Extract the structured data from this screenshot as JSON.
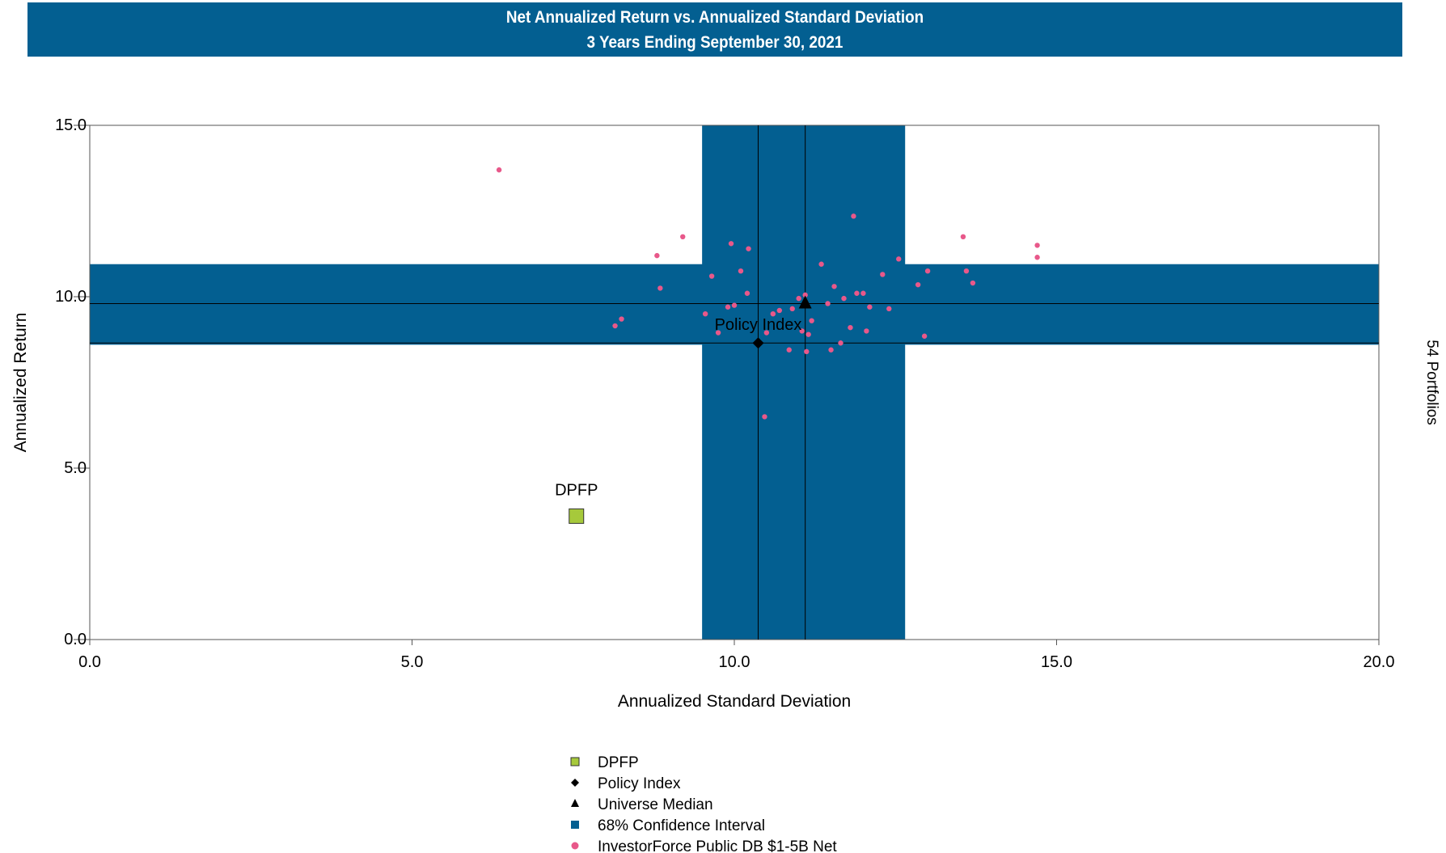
{
  "header": {
    "title": "Net Annualized Return vs. Annualized Standard Deviation",
    "subtitle": "3 Years Ending September 30, 2021"
  },
  "chart_data": {
    "type": "scatter",
    "title": "Net Annualized Return vs. Annualized Standard Deviation",
    "subtitle": "3 Years Ending September 30, 2021",
    "xlabel": "Annualized Standard Deviation",
    "ylabel": "Annualized Return",
    "right_label": "54 Portfolios",
    "xlim": [
      0,
      20
    ],
    "ylim": [
      0,
      15
    ],
    "x_ticks": [
      "0.0",
      "5.0",
      "10.0",
      "15.0",
      "20.0"
    ],
    "y_ticks": [
      "0.0",
      "5.0",
      "10.0",
      "15.0"
    ],
    "colors": {
      "confidence": "#035f91",
      "dpfp": "#a6c93b",
      "universe": "#e8588a",
      "marker": "#000000"
    },
    "confidence_interval": {
      "label": "68% Confidence Interval",
      "x_range": [
        9.5,
        12.65
      ],
      "y_range": [
        8.6,
        10.95
      ]
    },
    "policy_index": {
      "label": "Policy Index",
      "x": 10.37,
      "y": 8.65
    },
    "universe_median": {
      "label": "Universe Median",
      "x": 11.1,
      "y": 9.8
    },
    "dpfp": {
      "label": "DPFP",
      "x": 7.55,
      "y": 3.6
    },
    "universe": {
      "label": "InvestorForce Public DB $1-5B Net",
      "points": [
        [
          6.35,
          13.7
        ],
        [
          8.8,
          11.2
        ],
        [
          9.2,
          11.75
        ],
        [
          8.85,
          10.25
        ],
        [
          8.15,
          9.15
        ],
        [
          8.25,
          9.35
        ],
        [
          9.55,
          9.5
        ],
        [
          9.65,
          10.6
        ],
        [
          9.75,
          8.95
        ],
        [
          9.9,
          9.7
        ],
        [
          9.95,
          11.55
        ],
        [
          10.0,
          9.75
        ],
        [
          10.1,
          10.75
        ],
        [
          10.2,
          10.1
        ],
        [
          10.22,
          11.4
        ],
        [
          10.5,
          8.95
        ],
        [
          10.6,
          9.5
        ],
        [
          10.7,
          9.6
        ],
        [
          10.85,
          8.45
        ],
        [
          10.9,
          9.65
        ],
        [
          11.0,
          9.95
        ],
        [
          11.05,
          9.0
        ],
        [
          11.1,
          10.05
        ],
        [
          11.15,
          8.9
        ],
        [
          11.12,
          8.4
        ],
        [
          11.2,
          9.3
        ],
        [
          11.35,
          10.95
        ],
        [
          11.45,
          9.8
        ],
        [
          11.55,
          10.3
        ],
        [
          11.5,
          8.45
        ],
        [
          11.65,
          8.65
        ],
        [
          11.7,
          9.95
        ],
        [
          11.8,
          9.1
        ],
        [
          11.85,
          12.35
        ],
        [
          11.9,
          10.1
        ],
        [
          12.0,
          10.1
        ],
        [
          12.05,
          9.0
        ],
        [
          12.1,
          9.7
        ],
        [
          12.3,
          10.65
        ],
        [
          12.4,
          9.65
        ],
        [
          12.55,
          11.1
        ],
        [
          12.85,
          10.35
        ],
        [
          12.95,
          8.85
        ],
        [
          13.0,
          10.75
        ],
        [
          13.55,
          11.75
        ],
        [
          13.6,
          10.75
        ],
        [
          13.7,
          10.4
        ],
        [
          14.7,
          11.5
        ],
        [
          14.7,
          11.15
        ],
        [
          10.47,
          6.5
        ]
      ]
    },
    "legend": [
      "DPFP",
      "Policy Index",
      "Universe Median",
      "68% Confidence Interval",
      "InvestorForce Public DB $1-5B Net"
    ]
  }
}
